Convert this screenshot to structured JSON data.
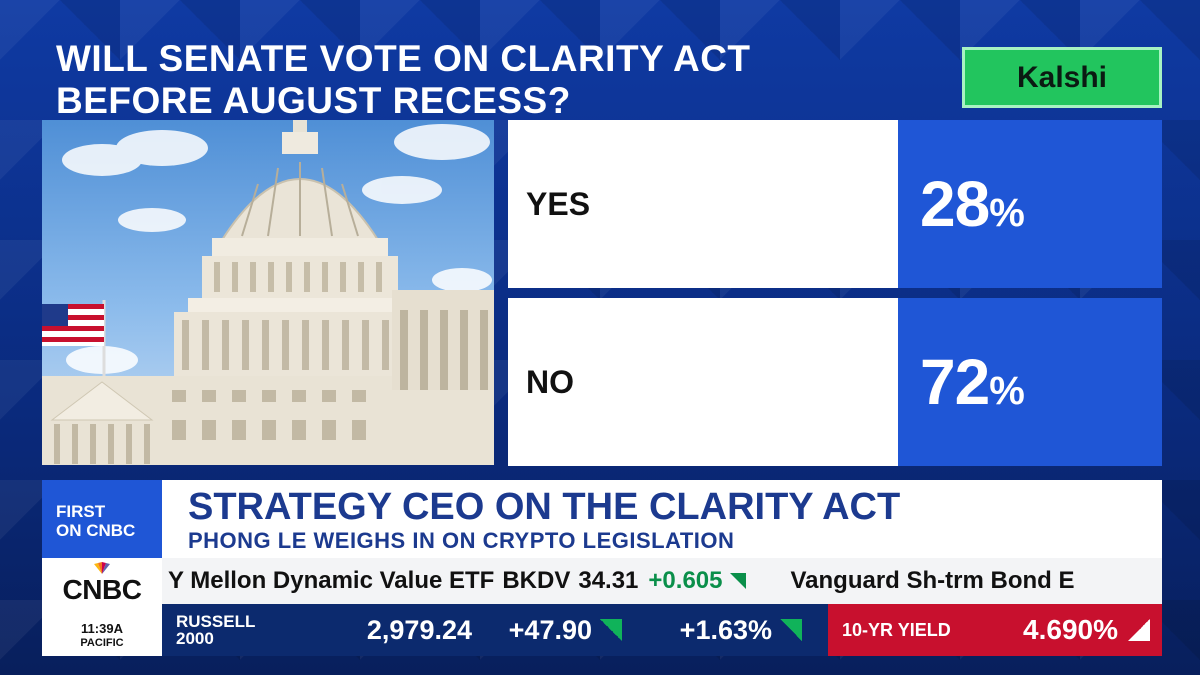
{
  "question": "WILL SENATE VOTE ON CLARITY ACT BEFORE AUGUST RECESS?",
  "badge": "Kalshi",
  "outcomes": [
    {
      "label": "YES",
      "percent": "28",
      "unit": "%"
    },
    {
      "label": "NO",
      "percent": "72",
      "unit": "%"
    }
  ],
  "lower_third": {
    "tag_line1": "FIRST",
    "tag_line2": "ON CNBC",
    "headline": "STRATEGY CEO ON THE CLARITY ACT",
    "subhead": "PHONG LE WEIGHS IN ON CRYPTO LEGISLATION"
  },
  "logo": {
    "text": "CNBC",
    "time": "11:39",
    "ampm": "A",
    "zone": "PACIFIC"
  },
  "ticker_top": {
    "name": "Y Mellon Dynamic Value ETF",
    "symbol": "BKDV",
    "price": "34.31",
    "change": "+0.605",
    "next_name": "Vanguard Sh-trm Bond E"
  },
  "ticker_bottom": {
    "index_line1": "RUSSELL",
    "index_line2": "2000",
    "value": "2,979.24",
    "change": "+47.90",
    "percent": "+1.63%"
  },
  "yield": {
    "label": "10-YR YIELD",
    "value": "4.690%"
  },
  "colors": {
    "accent_blue": "#1f56d6",
    "badge_green": "#22c55e",
    "yield_red": "#c8102e",
    "up_green": "#10b35a"
  }
}
